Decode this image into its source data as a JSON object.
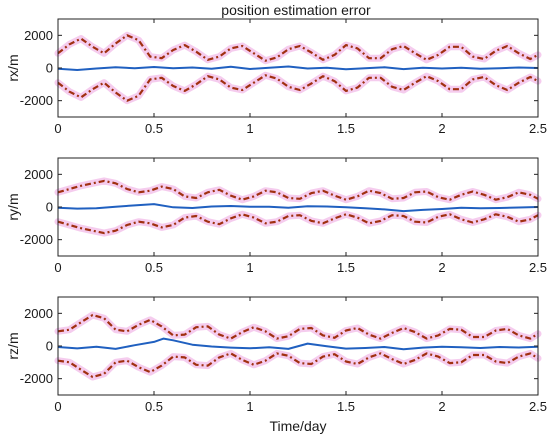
{
  "figure": {
    "title": "position estimation error",
    "xlabel": "Time/day"
  },
  "chart_data": [
    {
      "type": "line",
      "title": "position estimation error",
      "xlabel": "",
      "ylabel": "rx/m",
      "xlim": [
        0,
        2.5
      ],
      "ylim": [
        -3000,
        3000
      ],
      "xticks": [
        0,
        0.5,
        1,
        1.5,
        2,
        2.5
      ],
      "xtick_labels": [
        "0",
        "0.5",
        "1",
        "1.5",
        "2",
        "2.5"
      ],
      "yticks": [
        2000,
        0,
        -2000
      ],
      "ytick_labels": [
        "2000",
        "0",
        "-2000"
      ],
      "grid": false,
      "colors": {
        "estimate": "#2060c0",
        "bound": "#a03010",
        "bound_halo": "#f4c6ec"
      },
      "series": [
        {
          "role": "bound-upper",
          "style": "dashed",
          "x": [
            0,
            0.06,
            0.12,
            0.18,
            0.24,
            0.3,
            0.36,
            0.42,
            0.48,
            0.54,
            0.6,
            0.66,
            0.72,
            0.78,
            0.84,
            0.9,
            0.96,
            1.02,
            1.08,
            1.14,
            1.2,
            1.26,
            1.32,
            1.38,
            1.44,
            1.5,
            1.56,
            1.62,
            1.68,
            1.74,
            1.8,
            1.86,
            1.92,
            1.98,
            2.04,
            2.1,
            2.16,
            2.22,
            2.28,
            2.34,
            2.4,
            2.46,
            2.5
          ],
          "y": [
            900,
            1450,
            1800,
            1300,
            900,
            1500,
            2000,
            1700,
            700,
            600,
            1100,
            1400,
            1000,
            500,
            700,
            1200,
            1350,
            900,
            450,
            650,
            1150,
            1350,
            950,
            500,
            800,
            1400,
            1200,
            600,
            600,
            1150,
            1350,
            900,
            500,
            800,
            1300,
            1300,
            700,
            550,
            1050,
            1350,
            900,
            550,
            800
          ]
        },
        {
          "role": "bound-lower",
          "style": "dashed",
          "x": [
            0,
            0.06,
            0.12,
            0.18,
            0.24,
            0.3,
            0.36,
            0.42,
            0.48,
            0.54,
            0.6,
            0.66,
            0.72,
            0.78,
            0.84,
            0.9,
            0.96,
            1.02,
            1.08,
            1.14,
            1.2,
            1.26,
            1.32,
            1.38,
            1.44,
            1.5,
            1.56,
            1.62,
            1.68,
            1.74,
            1.8,
            1.86,
            1.92,
            1.98,
            2.04,
            2.1,
            2.16,
            2.22,
            2.28,
            2.34,
            2.4,
            2.46,
            2.5
          ],
          "y": [
            -900,
            -1450,
            -1800,
            -1300,
            -900,
            -1500,
            -2000,
            -1700,
            -700,
            -600,
            -1100,
            -1400,
            -1000,
            -500,
            -700,
            -1200,
            -1350,
            -900,
            -450,
            -650,
            -1150,
            -1350,
            -950,
            -500,
            -800,
            -1400,
            -1200,
            -600,
            -600,
            -1150,
            -1350,
            -900,
            -500,
            -800,
            -1300,
            -1300,
            -700,
            -550,
            -1050,
            -1350,
            -900,
            -550,
            -800
          ]
        },
        {
          "role": "estimate",
          "style": "solid",
          "x": [
            0,
            0.1,
            0.2,
            0.3,
            0.4,
            0.5,
            0.6,
            0.7,
            0.8,
            0.9,
            1.0,
            1.1,
            1.2,
            1.3,
            1.4,
            1.5,
            1.6,
            1.7,
            1.8,
            1.9,
            2.0,
            2.1,
            2.2,
            2.3,
            2.4,
            2.5
          ],
          "y": [
            -50,
            -120,
            -30,
            40,
            -10,
            60,
            -20,
            30,
            -40,
            80,
            -60,
            20,
            90,
            -30,
            10,
            -80,
            -20,
            40,
            -70,
            10,
            -30,
            20,
            -50,
            -10,
            30,
            0
          ]
        }
      ]
    },
    {
      "type": "line",
      "title": "",
      "xlabel": "",
      "ylabel": "ry/m",
      "xlim": [
        0,
        2.5
      ],
      "ylim": [
        -3000,
        3000
      ],
      "xticks": [
        0,
        0.5,
        1,
        1.5,
        2,
        2.5
      ],
      "xtick_labels": [
        "0",
        "0.5",
        "1",
        "1.5",
        "2",
        "2.5"
      ],
      "yticks": [
        2000,
        0,
        -2000
      ],
      "ytick_labels": [
        "2000",
        "0",
        "-2000"
      ],
      "grid": false,
      "colors": {
        "estimate": "#2060c0",
        "bound": "#a03010",
        "bound_halo": "#f4c6ec"
      },
      "series": [
        {
          "role": "bound-upper",
          "style": "dashed",
          "x": [
            0,
            0.06,
            0.12,
            0.18,
            0.24,
            0.3,
            0.36,
            0.42,
            0.48,
            0.54,
            0.6,
            0.66,
            0.72,
            0.78,
            0.84,
            0.9,
            0.96,
            1.02,
            1.08,
            1.14,
            1.2,
            1.26,
            1.32,
            1.38,
            1.44,
            1.5,
            1.56,
            1.62,
            1.68,
            1.74,
            1.8,
            1.86,
            1.92,
            1.98,
            2.04,
            2.1,
            2.16,
            2.22,
            2.28,
            2.34,
            2.4,
            2.46,
            2.5
          ],
          "y": [
            900,
            1100,
            1300,
            1450,
            1600,
            1450,
            1100,
            900,
            1000,
            1250,
            1100,
            650,
            550,
            900,
            1050,
            700,
            450,
            650,
            1000,
            900,
            550,
            500,
            850,
            1000,
            700,
            450,
            650,
            1000,
            850,
            500,
            550,
            900,
            950,
            600,
            450,
            750,
            950,
            750,
            450,
            600,
            900,
            750,
            500
          ]
        },
        {
          "role": "bound-lower",
          "style": "dashed",
          "x": [
            0,
            0.06,
            0.12,
            0.18,
            0.24,
            0.3,
            0.36,
            0.42,
            0.48,
            0.54,
            0.6,
            0.66,
            0.72,
            0.78,
            0.84,
            0.9,
            0.96,
            1.02,
            1.08,
            1.14,
            1.2,
            1.26,
            1.32,
            1.38,
            1.44,
            1.5,
            1.56,
            1.62,
            1.68,
            1.74,
            1.8,
            1.86,
            1.92,
            1.98,
            2.04,
            2.1,
            2.16,
            2.22,
            2.28,
            2.34,
            2.4,
            2.46,
            2.5
          ],
          "y": [
            -900,
            -1100,
            -1300,
            -1450,
            -1600,
            -1450,
            -1100,
            -900,
            -1000,
            -1250,
            -1100,
            -650,
            -550,
            -900,
            -1050,
            -700,
            -450,
            -650,
            -1000,
            -900,
            -550,
            -500,
            -850,
            -1000,
            -700,
            -450,
            -650,
            -1000,
            -850,
            -500,
            -550,
            -900,
            -950,
            -600,
            -450,
            -750,
            -950,
            -750,
            -450,
            -600,
            -900,
            -750,
            -500
          ]
        },
        {
          "role": "estimate",
          "style": "solid",
          "x": [
            0,
            0.1,
            0.2,
            0.3,
            0.4,
            0.5,
            0.6,
            0.7,
            0.8,
            0.9,
            1.0,
            1.1,
            1.2,
            1.3,
            1.4,
            1.5,
            1.6,
            1.7,
            1.8,
            1.9,
            2.0,
            2.1,
            2.2,
            2.3,
            2.4,
            2.5
          ],
          "y": [
            -50,
            -100,
            -80,
            20,
            100,
            180,
            -20,
            -60,
            30,
            60,
            20,
            10,
            -50,
            40,
            30,
            -20,
            -80,
            -150,
            -250,
            -180,
            -120,
            -40,
            -80,
            -60,
            -30,
            0
          ]
        }
      ]
    },
    {
      "type": "line",
      "title": "",
      "xlabel": "Time/day",
      "ylabel": "rz/m",
      "xlim": [
        0,
        2.5
      ],
      "ylim": [
        -3000,
        3000
      ],
      "xticks": [
        0,
        0.5,
        1,
        1.5,
        2,
        2.5
      ],
      "xtick_labels": [
        "0",
        "0.5",
        "1",
        "1.5",
        "2",
        "2.5"
      ],
      "yticks": [
        2000,
        0,
        -2000
      ],
      "ytick_labels": [
        "2000",
        "0",
        "-2000"
      ],
      "grid": false,
      "colors": {
        "estimate": "#2060c0",
        "bound": "#a03010",
        "bound_halo": "#f4c6ec"
      },
      "series": [
        {
          "role": "bound-upper",
          "style": "dashed",
          "x": [
            0,
            0.06,
            0.12,
            0.18,
            0.24,
            0.3,
            0.36,
            0.42,
            0.48,
            0.54,
            0.6,
            0.66,
            0.72,
            0.78,
            0.84,
            0.9,
            0.96,
            1.02,
            1.08,
            1.14,
            1.2,
            1.26,
            1.32,
            1.38,
            1.44,
            1.5,
            1.56,
            1.62,
            1.68,
            1.74,
            1.8,
            1.86,
            1.92,
            1.98,
            2.04,
            2.1,
            2.16,
            2.22,
            2.28,
            2.34,
            2.4,
            2.46,
            2.5
          ],
          "y": [
            900,
            1000,
            1450,
            1900,
            1700,
            1000,
            900,
            1300,
            1600,
            1200,
            650,
            700,
            1150,
            1200,
            700,
            450,
            850,
            1150,
            900,
            450,
            600,
            1050,
            1100,
            650,
            500,
            950,
            1100,
            700,
            450,
            800,
            1100,
            850,
            450,
            650,
            1050,
            1000,
            550,
            550,
            950,
            1050,
            650,
            450,
            750
          ]
        },
        {
          "role": "bound-lower",
          "style": "dashed",
          "x": [
            0,
            0.06,
            0.12,
            0.18,
            0.24,
            0.3,
            0.36,
            0.42,
            0.48,
            0.54,
            0.6,
            0.66,
            0.72,
            0.78,
            0.84,
            0.9,
            0.96,
            1.02,
            1.08,
            1.14,
            1.2,
            1.26,
            1.32,
            1.38,
            1.44,
            1.5,
            1.56,
            1.62,
            1.68,
            1.74,
            1.8,
            1.86,
            1.92,
            1.98,
            2.04,
            2.1,
            2.16,
            2.22,
            2.28,
            2.34,
            2.4,
            2.46,
            2.5
          ],
          "y": [
            -900,
            -1000,
            -1450,
            -1900,
            -1700,
            -1000,
            -900,
            -1300,
            -1600,
            -1200,
            -650,
            -700,
            -1150,
            -1200,
            -700,
            -450,
            -850,
            -1150,
            -900,
            -450,
            -600,
            -1050,
            -1100,
            -650,
            -500,
            -950,
            -1100,
            -700,
            -450,
            -800,
            -1100,
            -850,
            -450,
            -650,
            -1050,
            -1000,
            -550,
            -550,
            -950,
            -1050,
            -650,
            -450,
            -750
          ]
        },
        {
          "role": "estimate",
          "style": "solid",
          "x": [
            0,
            0.1,
            0.2,
            0.3,
            0.4,
            0.5,
            0.55,
            0.6,
            0.7,
            0.8,
            0.9,
            1.0,
            1.1,
            1.2,
            1.3,
            1.4,
            1.5,
            1.6,
            1.7,
            1.8,
            1.9,
            2.0,
            2.1,
            2.2,
            2.3,
            2.4,
            2.5
          ],
          "y": [
            -60,
            -150,
            -50,
            -180,
            50,
            250,
            450,
            350,
            80,
            -30,
            -100,
            -140,
            -80,
            -180,
            150,
            -20,
            -160,
            -120,
            -60,
            -200,
            -100,
            -40,
            -80,
            -120,
            -60,
            -90,
            -40
          ]
        }
      ]
    }
  ]
}
